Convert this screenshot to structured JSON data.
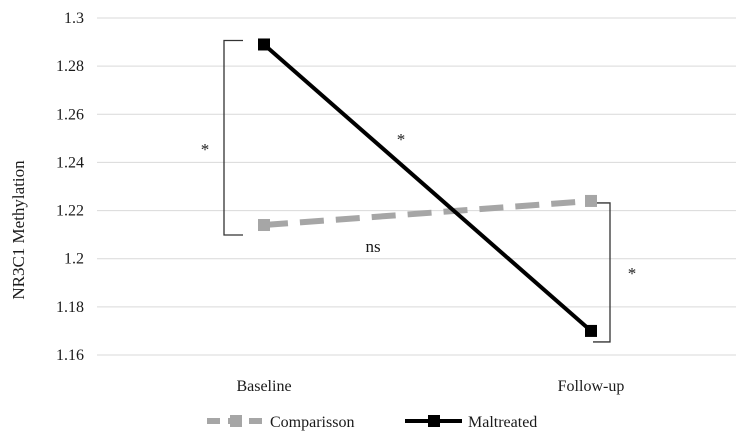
{
  "chart_data": {
    "type": "line",
    "title": "",
    "xlabel": "",
    "ylabel": "NR3C1 Methylation",
    "categories": [
      "Baseline",
      "Follow-up"
    ],
    "ylim": [
      1.16,
      1.3
    ],
    "yticks": [
      "1.3",
      "1.28",
      "1.26",
      "1.24",
      "1.22",
      "1.2",
      "1.18",
      "1.16"
    ],
    "grid": "horizontal",
    "legend_position": "bottom",
    "series": [
      {
        "name": "Comparisson",
        "values": [
          1.214,
          1.224
        ],
        "color": "#a6a6a6",
        "style": "dashed",
        "marker": "square"
      },
      {
        "name": "Maltreated",
        "values": [
          1.289,
          1.17
        ],
        "color": "#000000",
        "style": "solid",
        "marker": "square"
      }
    ],
    "annotations": [
      {
        "id": "baseline-bracket",
        "text": "*"
      },
      {
        "id": "maltreated-change",
        "text": "*"
      },
      {
        "id": "comparison-change",
        "text": "ns"
      },
      {
        "id": "followup-bracket",
        "text": "*"
      }
    ]
  }
}
